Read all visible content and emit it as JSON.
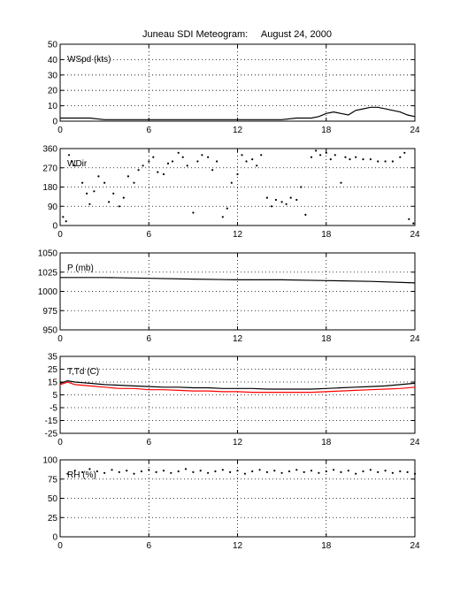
{
  "title": "Juneau SDI Meteogram:     August 24, 2000",
  "chart_data": [
    {
      "type": "line",
      "label": "WSpd (kts)",
      "xlim": [
        0,
        24
      ],
      "xticks": [
        0,
        6,
        12,
        18,
        24
      ],
      "ylim": [
        0,
        50
      ],
      "yticks": [
        0,
        10,
        20,
        30,
        40,
        50
      ],
      "grid": true,
      "series": [
        {
          "color": "#000000",
          "x": [
            0,
            1,
            2,
            3,
            4,
            5,
            6,
            7,
            8,
            9,
            10,
            11,
            12,
            13,
            14,
            15,
            16,
            17,
            17.5,
            18,
            18.5,
            19,
            19.5,
            20,
            20.5,
            21,
            21.5,
            22,
            22.5,
            23,
            23.5,
            24
          ],
          "y": [
            2,
            2,
            2,
            1,
            1,
            1,
            1,
            1,
            1,
            1,
            1,
            1,
            1,
            1,
            1,
            1,
            2,
            2,
            3,
            5,
            6,
            5,
            4,
            7,
            8,
            9,
            9,
            8,
            7,
            6,
            4,
            3
          ]
        }
      ]
    },
    {
      "type": "scatter",
      "label": "WDir",
      "xlim": [
        0,
        24
      ],
      "xticks": [
        0,
        6,
        12,
        18,
        24
      ],
      "ylim": [
        0,
        360
      ],
      "yticks": [
        0,
        90,
        180,
        270,
        360
      ],
      "grid": true,
      "series": [
        {
          "color": "#000000",
          "x": [
            0.2,
            0.4,
            0.6,
            0.8,
            1.0,
            1.5,
            1.8,
            2.0,
            2.3,
            2.6,
            3.0,
            3.3,
            3.6,
            4.0,
            4.3,
            4.6,
            5.0,
            5.3,
            5.6,
            6.0,
            6.3,
            6.6,
            7.0,
            7.3,
            7.6,
            8.0,
            8.3,
            8.6,
            9.0,
            9.3,
            9.6,
            10.0,
            10.3,
            10.6,
            11.0,
            11.3,
            11.6,
            12.0,
            12.3,
            12.6,
            13.0,
            13.3,
            13.6,
            14.0,
            14.3,
            14.6,
            15.0,
            15.3,
            15.6,
            16.0,
            16.3,
            16.6,
            17.0,
            17.3,
            17.6,
            18.0,
            18.3,
            18.6,
            19.0,
            19.3,
            19.6,
            20.0,
            20.5,
            21.0,
            21.5,
            22.0,
            22.5,
            23.0,
            23.3,
            23.6,
            23.9
          ],
          "y": [
            40,
            20,
            330,
            300,
            280,
            200,
            150,
            100,
            160,
            230,
            200,
            110,
            150,
            90,
            130,
            230,
            200,
            260,
            280,
            300,
            320,
            250,
            240,
            290,
            300,
            340,
            320,
            280,
            60,
            300,
            330,
            320,
            260,
            300,
            40,
            80,
            200,
            240,
            330,
            300,
            310,
            280,
            330,
            130,
            90,
            120,
            110,
            100,
            130,
            120,
            180,
            50,
            320,
            350,
            330,
            340,
            310,
            330,
            200,
            320,
            310,
            320,
            310,
            310,
            300,
            300,
            300,
            320,
            340,
            30,
            10
          ]
        }
      ]
    },
    {
      "type": "line",
      "label": "P (mb)",
      "xlim": [
        0,
        24
      ],
      "xticks": [
        0,
        6,
        12,
        18,
        24
      ],
      "ylim": [
        950,
        1050
      ],
      "yticks": [
        950,
        975,
        1000,
        1025,
        1050
      ],
      "grid": true,
      "series": [
        {
          "color": "#000000",
          "x": [
            0,
            3,
            6,
            9,
            12,
            15,
            18,
            21,
            24
          ],
          "y": [
            1018,
            1018,
            1017,
            1016,
            1015,
            1015,
            1014,
            1013,
            1011
          ]
        }
      ]
    },
    {
      "type": "line",
      "label": "T,Td (C)",
      "xlim": [
        0,
        24
      ],
      "xticks": [
        0,
        6,
        12,
        18,
        24
      ],
      "ylim": [
        -25,
        35
      ],
      "yticks": [
        -25,
        -15,
        -5,
        5,
        15,
        25,
        35
      ],
      "grid": true,
      "series": [
        {
          "color": "#000000",
          "x": [
            0,
            0.5,
            1,
            2,
            3,
            4,
            5,
            6,
            7,
            8,
            9,
            10,
            11,
            12,
            13,
            14,
            15,
            16,
            17,
            18,
            19,
            20,
            21,
            22,
            23,
            24
          ],
          "y": [
            14,
            16,
            15,
            14,
            13,
            12.5,
            12,
            11.5,
            11,
            11,
            10.5,
            10.5,
            10,
            10,
            10,
            9.5,
            9.5,
            9.5,
            9.5,
            10,
            10.5,
            11,
            11.5,
            12,
            13,
            14
          ]
        },
        {
          "color": "#ff0000",
          "x": [
            0,
            0.5,
            1,
            2,
            3,
            4,
            5,
            6,
            7,
            8,
            9,
            10,
            11,
            12,
            13,
            14,
            15,
            16,
            17,
            18,
            19,
            20,
            21,
            22,
            23,
            24
          ],
          "y": [
            13,
            15,
            13,
            12,
            11,
            10,
            10,
            9,
            9,
            8.5,
            8,
            8,
            7.5,
            7.5,
            7,
            7,
            7,
            7,
            7,
            7.5,
            8,
            8.5,
            9,
            9.5,
            10,
            11
          ]
        }
      ]
    },
    {
      "type": "scatter",
      "label": "RH (%)",
      "xlim": [
        0,
        24
      ],
      "xticks": [
        0,
        6,
        12,
        18,
        24
      ],
      "ylim": [
        0,
        100
      ],
      "yticks": [
        0,
        25,
        50,
        75,
        100
      ],
      "grid": true,
      "series": [
        {
          "color": "#000000",
          "x": [
            0.5,
            1,
            1.5,
            2,
            2.5,
            3,
            3.5,
            4,
            4.5,
            5,
            5.5,
            6,
            6.5,
            7,
            7.5,
            8,
            8.5,
            9,
            9.5,
            10,
            10.5,
            11,
            11.5,
            12,
            12.5,
            13,
            13.5,
            14,
            14.5,
            15,
            15.5,
            16,
            16.5,
            17,
            17.5,
            18,
            18.5,
            19,
            19.5,
            20,
            20.5,
            21,
            21.5,
            22,
            22.5,
            23,
            23.5,
            24
          ],
          "y": [
            82,
            86,
            84,
            88,
            85,
            83,
            87,
            84,
            86,
            82,
            85,
            87,
            84,
            86,
            83,
            85,
            88,
            84,
            86,
            83,
            85,
            87,
            84,
            86,
            82,
            85,
            87,
            84,
            86,
            83,
            85,
            87,
            84,
            86,
            83,
            85,
            87,
            84,
            86,
            82,
            85,
            87,
            84,
            86,
            83,
            85,
            84,
            82
          ]
        }
      ]
    }
  ]
}
